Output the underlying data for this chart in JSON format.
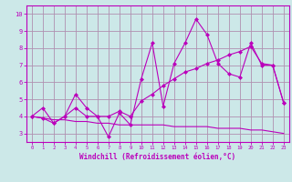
{
  "xlabel": "Windchill (Refroidissement éolien,°C)",
  "xlim": [
    -0.5,
    23.5
  ],
  "ylim": [
    2.5,
    10.5
  ],
  "xticks": [
    0,
    1,
    2,
    3,
    4,
    5,
    6,
    7,
    8,
    9,
    10,
    11,
    12,
    13,
    14,
    15,
    16,
    17,
    18,
    19,
    20,
    21,
    22,
    23
  ],
  "yticks": [
    3,
    4,
    5,
    6,
    7,
    8,
    9,
    10
  ],
  "background_color": "#cce8e8",
  "grid_color": "#b090b0",
  "line_color": "#bb00bb",
  "line1_x": [
    0,
    1,
    2,
    3,
    4,
    5,
    6,
    7,
    8,
    9,
    10,
    11,
    12,
    13,
    14,
    15,
    16,
    17,
    18,
    19,
    20,
    21,
    22,
    23
  ],
  "line1_y": [
    4.0,
    4.5,
    3.6,
    4.0,
    5.3,
    4.5,
    4.0,
    2.8,
    4.2,
    3.5,
    6.2,
    8.3,
    4.6,
    7.1,
    8.3,
    9.7,
    8.8,
    7.1,
    6.5,
    6.3,
    8.3,
    7.0,
    7.0,
    4.8
  ],
  "line2_x": [
    0,
    1,
    2,
    3,
    4,
    5,
    6,
    7,
    8,
    9,
    10,
    11,
    12,
    13,
    14,
    15,
    16,
    17,
    18,
    19,
    20,
    21,
    22,
    23
  ],
  "line2_y": [
    4.0,
    3.9,
    3.6,
    4.0,
    4.5,
    4.0,
    4.0,
    4.0,
    4.3,
    4.0,
    4.9,
    5.3,
    5.8,
    6.2,
    6.6,
    6.8,
    7.1,
    7.3,
    7.6,
    7.8,
    8.1,
    7.1,
    7.0,
    4.8
  ],
  "line3_x": [
    0,
    1,
    2,
    3,
    4,
    5,
    6,
    7,
    8,
    9,
    10,
    11,
    12,
    13,
    14,
    15,
    16,
    17,
    18,
    19,
    20,
    21,
    22,
    23
  ],
  "line3_y": [
    4.0,
    3.9,
    3.8,
    3.8,
    3.7,
    3.7,
    3.6,
    3.6,
    3.5,
    3.5,
    3.5,
    3.5,
    3.5,
    3.4,
    3.4,
    3.4,
    3.4,
    3.3,
    3.3,
    3.3,
    3.2,
    3.2,
    3.1,
    3.0
  ],
  "figsize": [
    3.2,
    2.0
  ],
  "dpi": 100
}
